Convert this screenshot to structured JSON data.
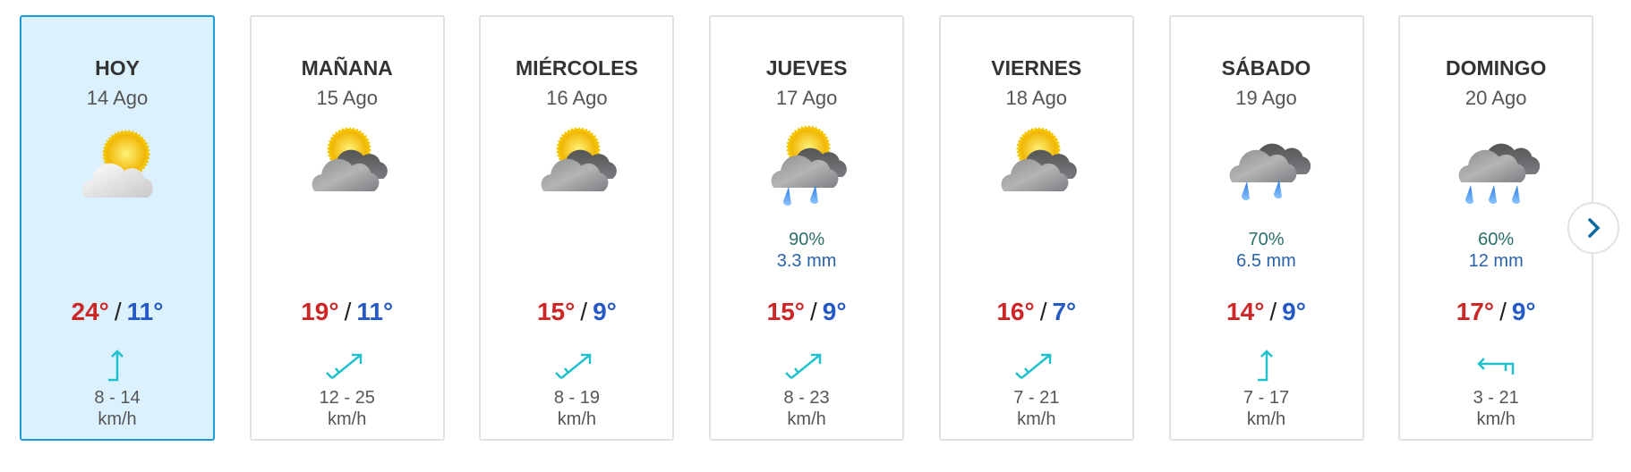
{
  "days": [
    {
      "day": "HOY",
      "date": "14 Ago",
      "icon": "sun-behind-cloud-icon",
      "pct": "",
      "mm": "",
      "max": "24°",
      "min": "11°",
      "speed": "8 - 14",
      "unit": "km/h",
      "wind": "north"
    },
    {
      "day": "MAÑANA",
      "date": "15 Ago",
      "icon": "sun-behind-gray-clouds-icon",
      "pct": "",
      "mm": "",
      "max": "19°",
      "min": "11°",
      "speed": "12 - 25",
      "unit": "km/h",
      "wind": "northeast"
    },
    {
      "day": "MIÉRCOLES",
      "date": "16 Ago",
      "icon": "sun-behind-gray-clouds-icon",
      "pct": "",
      "mm": "",
      "max": "15°",
      "min": "9°",
      "speed": "8 - 19",
      "unit": "km/h",
      "wind": "northeast"
    },
    {
      "day": "JUEVES",
      "date": "17 Ago",
      "icon": "sun-clouds-rain-icon",
      "pct": "90%",
      "mm": "3.3 mm",
      "max": "15°",
      "min": "9°",
      "speed": "8 - 23",
      "unit": "km/h",
      "wind": "northeast"
    },
    {
      "day": "VIERNES",
      "date": "18 Ago",
      "icon": "sun-behind-gray-clouds-icon",
      "pct": "",
      "mm": "",
      "max": "16°",
      "min": "7°",
      "speed": "7 - 21",
      "unit": "km/h",
      "wind": "northeast"
    },
    {
      "day": "SÁBADO",
      "date": "19 Ago",
      "icon": "rain-cloud-icon",
      "pct": "70%",
      "mm": "6.5 mm",
      "max": "14°",
      "min": "9°",
      "speed": "7 - 17",
      "unit": "km/h",
      "wind": "north"
    },
    {
      "day": "DOMINGO",
      "date": "20 Ago",
      "icon": "heavy-rain-cloud-icon",
      "pct": "60%",
      "mm": "12 mm",
      "max": "17°",
      "min": "9°",
      "speed": "3 - 21",
      "unit": "km/h",
      "wind": "west"
    }
  ],
  "temp_separator": "/",
  "colors": {
    "max": "#cc2626",
    "min": "#2559c6",
    "today_bg": "#dcf1fe",
    "today_border": "#1a9bd7",
    "wind": "#1fc1cc"
  },
  "next_button": "chevron-right-icon"
}
